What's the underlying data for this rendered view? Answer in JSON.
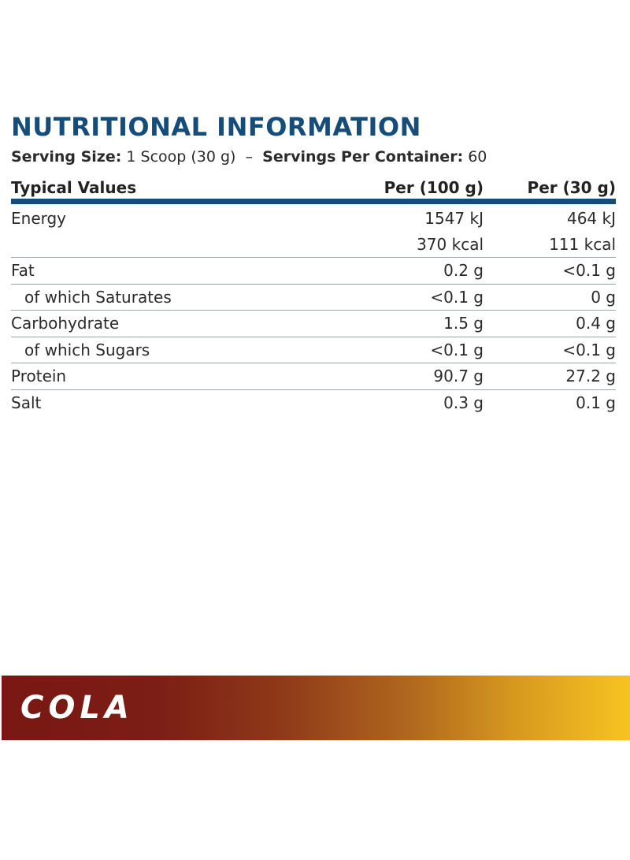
{
  "title": "NUTRITIONAL INFORMATION",
  "serving": {
    "size_label": "Serving Size:",
    "size_value": "1 Scoop (30 g)",
    "separator": "–",
    "servings_label": "Servings Per Container:",
    "servings_value": "60"
  },
  "table": {
    "headers": [
      "Typical Values",
      "Per (100 g)",
      "Per (30 g)"
    ],
    "rows": [
      {
        "label": "Energy",
        "per100": "1547 kJ",
        "per30": "464 kJ"
      },
      {
        "label": "",
        "per100": "370 kcal",
        "per30": "111 kcal"
      },
      {
        "label": "Fat",
        "per100": "0.2 g",
        "per30": "<0.1 g"
      },
      {
        "label": "of which Saturates",
        "per100": "<0.1 g",
        "per30": "0 g"
      },
      {
        "label": "Carbohydrate",
        "per100": "1.5 g",
        "per30": "0.4 g"
      },
      {
        "label": "of which Sugars",
        "per100": "<0.1 g",
        "per30": "<0.1 g"
      },
      {
        "label": "Protein",
        "per100": "90.7 g",
        "per30": "27.2 g"
      },
      {
        "label": "Salt",
        "per100": "0.3 g",
        "per30": "0.1 g"
      }
    ]
  },
  "banner": {
    "flavor": "COLA"
  },
  "colors": {
    "title": "#154c79",
    "rule": "#154c79",
    "banner_start": "#7a1714",
    "banner_end": "#f6c420"
  }
}
